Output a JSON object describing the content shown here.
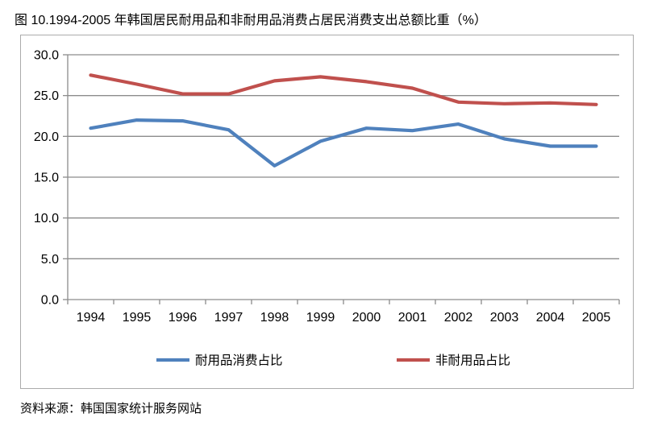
{
  "figure": {
    "title": "图 10.1994-2005 年韩国居民耐用品和非耐用品消费占居民消费支出总额比重（%）",
    "source": "资料来源：韩国国家统计服务网站"
  },
  "colors": {
    "durable_series": "#4F81BD",
    "nondurable_series": "#C0504D",
    "grid": "#8C8C8C",
    "axis": "#8C8C8C",
    "frame_border": "#ABABAB",
    "text": "#000000"
  },
  "chart_data": {
    "type": "line",
    "title": "",
    "xlabel": "",
    "ylabel": "",
    "categories": [
      "1994",
      "1995",
      "1996",
      "1997",
      "1998",
      "1999",
      "2000",
      "2001",
      "2002",
      "2003",
      "2004",
      "2005"
    ],
    "series": [
      {
        "name": "耐用品消费占比",
        "color": "#4F81BD",
        "values": [
          21.0,
          22.0,
          21.9,
          20.8,
          16.4,
          19.4,
          21.0,
          20.7,
          21.5,
          19.7,
          18.8,
          18.8
        ]
      },
      {
        "name": "非耐用品占比",
        "color": "#C0504D",
        "values": [
          27.5,
          26.4,
          25.2,
          25.2,
          26.8,
          27.3,
          26.7,
          25.9,
          24.2,
          24.0,
          24.1,
          23.9
        ]
      }
    ],
    "ylim": [
      0,
      30
    ],
    "ytick_step": 5,
    "ytick_labels": [
      "0.0",
      "5.0",
      "10.0",
      "15.0",
      "20.0",
      "25.0",
      "30.0"
    ],
    "grid": true,
    "legend_position": "bottom"
  }
}
